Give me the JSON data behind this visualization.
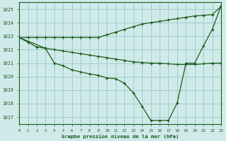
{
  "title": "Graphe pression niveau de la mer (hPa)",
  "bg_color": "#d0eaea",
  "grid_color": "#a0cccc",
  "line_color": "#1a5c1a",
  "xlim": [
    0,
    23
  ],
  "ylim": [
    1016.5,
    1025.5
  ],
  "yticks": [
    1017,
    1018,
    1019,
    1020,
    1021,
    1022,
    1023,
    1024,
    1025
  ],
  "xticks": [
    0,
    1,
    2,
    3,
    4,
    5,
    6,
    7,
    8,
    9,
    10,
    11,
    12,
    13,
    14,
    15,
    16,
    17,
    18,
    19,
    20,
    21,
    22,
    23
  ],
  "line1_x": [
    0,
    1,
    2,
    3,
    4,
    5,
    6,
    7,
    8,
    9,
    10,
    11,
    12,
    13,
    14,
    15,
    16,
    17,
    18,
    19,
    20,
    21,
    22,
    23
  ],
  "line1_y": [
    1022.9,
    1022.9,
    1022.9,
    1022.9,
    1022.9,
    1022.9,
    1022.9,
    1022.9,
    1022.9,
    1022.9,
    1023.1,
    1023.3,
    1023.5,
    1023.7,
    1023.9,
    1024.0,
    1024.1,
    1024.2,
    1024.3,
    1024.4,
    1024.5,
    1024.55,
    1024.6,
    1025.2
  ],
  "line2_x": [
    0,
    3,
    4,
    5,
    6,
    7,
    8,
    9,
    10,
    11,
    12,
    13,
    14,
    15,
    16,
    17,
    18,
    19,
    20,
    21,
    22,
    23
  ],
  "line2_y": [
    1022.9,
    1022.1,
    1022.0,
    1021.9,
    1021.8,
    1021.7,
    1021.6,
    1021.5,
    1021.4,
    1021.3,
    1021.2,
    1021.1,
    1021.05,
    1021.0,
    1021.0,
    1020.95,
    1020.9,
    1020.9,
    1020.9,
    1020.95,
    1021.0,
    1021.0
  ],
  "line3_x": [
    0,
    1,
    2,
    3,
    4,
    5,
    6,
    7,
    8,
    9,
    10,
    11,
    12,
    13,
    14,
    15,
    16,
    17,
    18,
    19,
    20,
    21,
    22,
    23
  ],
  "line3_y": [
    1022.9,
    1022.55,
    1022.2,
    1022.1,
    1021.0,
    1020.8,
    1020.5,
    1020.35,
    1020.2,
    1020.1,
    1019.9,
    1019.85,
    1019.5,
    1018.8,
    1017.8,
    1016.75,
    1016.75,
    1016.75,
    1018.05,
    1021.0,
    1021.0,
    1022.3,
    1023.5,
    1025.25
  ]
}
